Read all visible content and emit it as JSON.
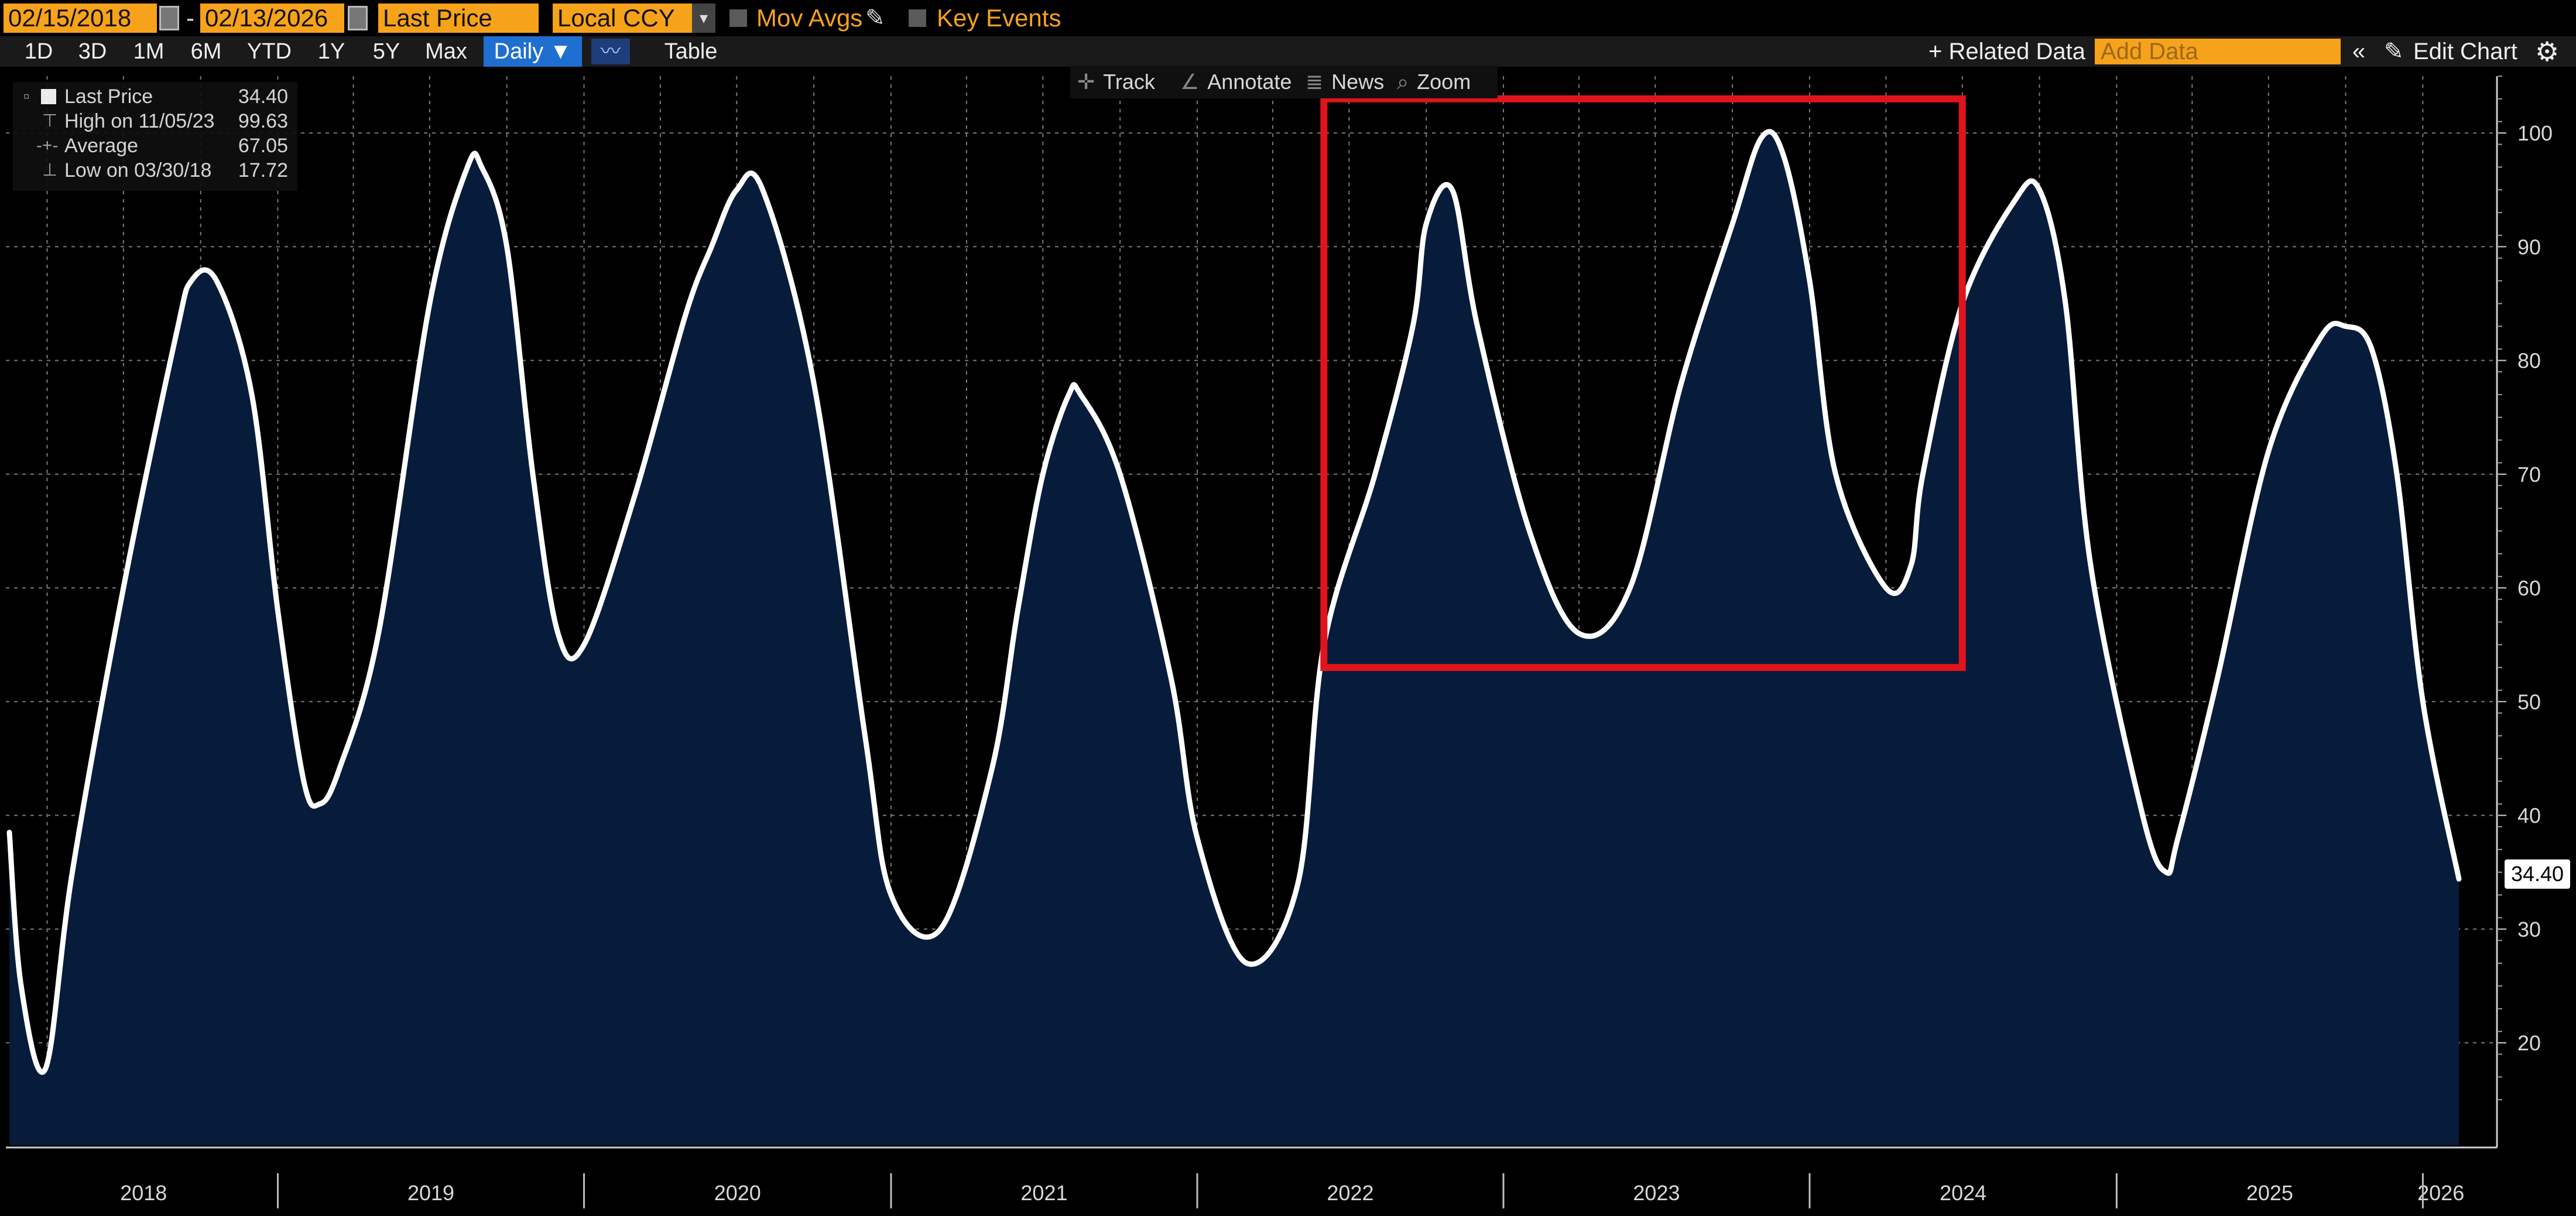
{
  "toolbar": {
    "start_date": "02/15/2018",
    "end_date": "02/13/2026",
    "date_separator": "-",
    "field": "Last Price",
    "currency": "Local CCY",
    "mov_avgs": "Mov Avgs",
    "key_events": "Key Events",
    "periods": [
      "1D",
      "3D",
      "1M",
      "6M",
      "YTD",
      "1Y",
      "5Y",
      "Max"
    ],
    "frequency": "Daily ▼",
    "table": "Table",
    "related_data": "+ Related Data",
    "add_data_placeholder": "Add Data",
    "collapse": "«",
    "edit_chart": "Edit Chart",
    "settings_icon": "gear-icon"
  },
  "chart_tools": {
    "track": "Track",
    "annotate": "Annotate",
    "news": "News",
    "zoom": "Zoom"
  },
  "legend": {
    "last_label": "Last Price",
    "last_value": "34.40",
    "high_label": "High on 11/05/23",
    "high_value": "99.63",
    "avg_label": "Average",
    "avg_value": "67.05",
    "low_label": "Low on 03/30/18",
    "low_value": "17.72"
  },
  "colors": {
    "background": "#000000",
    "area_fill": "#061c3a",
    "line": "#ffffff",
    "highlight_box": "#e0141c",
    "accent": "#f7a21b"
  },
  "chart_data": {
    "type": "area",
    "title": "",
    "xlabel": "",
    "ylabel": "",
    "ylim": [
      11,
      105
    ],
    "y_ticks": [
      20,
      30,
      40,
      50,
      60,
      70,
      80,
      90,
      100
    ],
    "x_tick_labels": [
      "2018",
      "2019",
      "2020",
      "2021",
      "2022",
      "2023",
      "2024",
      "2025",
      "2026"
    ],
    "grid": true,
    "legend_placement": "top-left",
    "last_value_label": "34.40",
    "highlight_box": {
      "x0": "2022-06",
      "x1": "2024-07",
      "y0": 53,
      "y1": 103
    },
    "series": [
      {
        "name": "Last Price",
        "x": [
          "2018-02-15",
          "2018-03-01",
          "2018-03-30",
          "2018-05-01",
          "2018-07-01",
          "2018-09-01",
          "2018-09-20",
          "2018-10-20",
          "2018-12-01",
          "2019-01-01",
          "2019-02-01",
          "2019-02-20",
          "2019-03-15",
          "2019-05-01",
          "2019-07-01",
          "2019-08-15",
          "2019-09-01",
          "2019-10-01",
          "2019-11-01",
          "2019-12-01",
          "2020-01-01",
          "2020-03-01",
          "2020-05-01",
          "2020-06-01",
          "2020-07-01",
          "2020-08-01",
          "2020-10-01",
          "2020-12-01",
          "2021-01-01",
          "2021-03-01",
          "2021-05-01",
          "2021-06-01",
          "2021-07-01",
          "2021-08-01",
          "2021-08-15",
          "2021-10-01",
          "2021-12-01",
          "2022-01-01",
          "2022-03-01",
          "2022-05-01",
          "2022-06-01",
          "2022-08-01",
          "2022-09-15",
          "2022-10-01",
          "2022-11-01",
          "2022-12-01",
          "2023-02-01",
          "2023-04-01",
          "2023-06-01",
          "2023-08-01",
          "2023-10-01",
          "2023-11-05",
          "2023-12-01",
          "2024-01-01",
          "2024-02-01",
          "2024-04-01",
          "2024-05-01",
          "2024-05-15",
          "2024-07-01",
          "2024-09-01",
          "2024-10-01",
          "2024-11-01",
          "2024-12-01",
          "2025-02-01",
          "2025-03-01",
          "2025-03-15",
          "2025-05-01",
          "2025-07-01",
          "2025-09-01",
          "2025-10-01",
          "2025-11-01",
          "2025-12-01",
          "2026-01-01",
          "2026-02-13"
        ],
        "values": [
          38.5,
          25,
          17.72,
          35,
          60,
          82,
          87,
          87,
          77,
          58,
          43,
          41,
          44,
          56,
          85,
          97,
          97,
          90,
          70,
          56,
          55,
          68,
          84,
          90,
          95,
          95,
          78,
          47,
          33,
          30,
          44,
          58,
          70,
          77,
          77,
          70,
          52,
          38,
          27,
          34,
          55,
          70,
          83,
          92,
          95,
          83,
          65,
          56,
          60,
          78,
          92,
          99.63,
          98,
          87,
          70,
          60,
          62,
          70,
          85,
          94,
          95,
          85,
          62,
          40,
          35,
          38,
          52,
          72,
          82,
          83,
          81,
          70,
          50,
          34.4
        ]
      }
    ]
  }
}
